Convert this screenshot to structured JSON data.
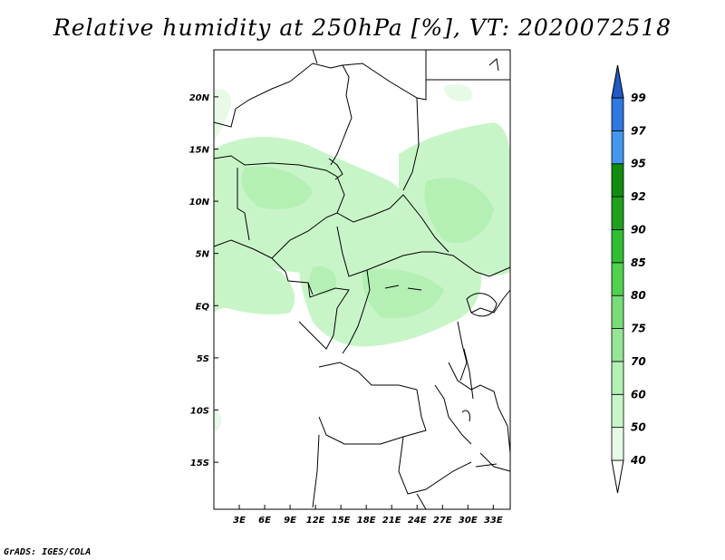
{
  "title": "Relative humidity at 250hPa [%], VT: 2020072518",
  "credit": "GrADS: IGES/COLA",
  "map": {
    "lon_range": [
      0,
      35
    ],
    "lat_range": [
      -19.5,
      24.5
    ],
    "lat_ticks": [
      {
        "value": 20,
        "label": "20N"
      },
      {
        "value": 15,
        "label": "15N"
      },
      {
        "value": 10,
        "label": "10N"
      },
      {
        "value": 5,
        "label": "5N"
      },
      {
        "value": 0,
        "label": "EQ"
      },
      {
        "value": -5,
        "label": "5S"
      },
      {
        "value": -10,
        "label": "10S"
      },
      {
        "value": -15,
        "label": "15S"
      }
    ],
    "lon_ticks": [
      {
        "value": 3,
        "label": "3E"
      },
      {
        "value": 6,
        "label": "6E"
      },
      {
        "value": 9,
        "label": "9E"
      },
      {
        "value": 12,
        "label": "12E"
      },
      {
        "value": 15,
        "label": "15E"
      },
      {
        "value": 18,
        "label": "18E"
      },
      {
        "value": 21,
        "label": "21E"
      },
      {
        "value": 24,
        "label": "24E"
      },
      {
        "value": 27,
        "label": "27E"
      },
      {
        "value": 30,
        "label": "30E"
      },
      {
        "value": 33,
        "label": "33E"
      }
    ]
  },
  "colorbar": {
    "levels": [
      "40",
      "50",
      "60",
      "70",
      "75",
      "80",
      "85",
      "90",
      "92",
      "95",
      "97",
      "99"
    ],
    "colors": [
      "#ffffff",
      "#e6fae6",
      "#c8f5c8",
      "#b4f0b4",
      "#96e696",
      "#78dc78",
      "#50d250",
      "#32be32",
      "#1ea01e",
      "#0f8c0f",
      "#4696f0",
      "#2d78e1",
      "#1e5ac8"
    ]
  }
}
